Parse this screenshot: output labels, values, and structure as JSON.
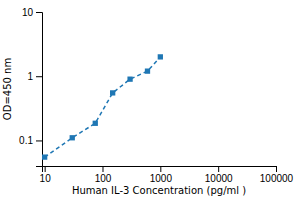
{
  "chart_data": {
    "type": "line",
    "xlabel": "Human IL-3 Concentration (pg/ml )",
    "ylabel": "OD=450 nm",
    "x": [
      10,
      30,
      75,
      150,
      300,
      600,
      1000
    ],
    "values": [
      0.055,
      0.11,
      0.185,
      0.55,
      0.9,
      1.2,
      2.0
    ],
    "log": true,
    "xlim": [
      9,
      100000
    ],
    "ylim": [
      0.04,
      10
    ],
    "xticks": [
      10,
      100,
      1000,
      10000,
      100000
    ],
    "yticks": [
      0.1,
      1,
      10
    ],
    "marker": "square",
    "line_style": "dashed"
  }
}
